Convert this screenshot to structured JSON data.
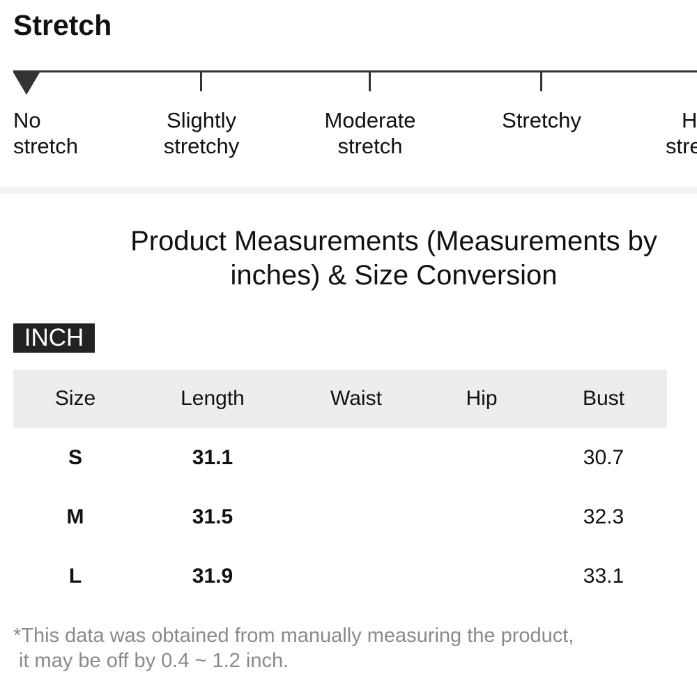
{
  "stretch": {
    "title": "Stretch",
    "selected_index": 0,
    "levels": [
      {
        "line1": "No",
        "line2": "stretch"
      },
      {
        "line1": "Slightly",
        "line2": "stretchy"
      },
      {
        "line1": "Moderate",
        "line2": "stretch"
      },
      {
        "line1": "Stretchy",
        "line2": ""
      },
      {
        "line1": "H",
        "line2": "stre"
      }
    ]
  },
  "measurements": {
    "title_line1": "Product Measurements (Measurements by",
    "title_line2": "inches) & Size Conversion",
    "unit": "INCH",
    "headers": {
      "size": "Size",
      "length": "Length",
      "waist": "Waist",
      "hip": "Hip",
      "bust": "Bust"
    },
    "rows": [
      {
        "size": "S",
        "length": "31.1",
        "waist": "",
        "hip": "",
        "bust": "30.7"
      },
      {
        "size": "M",
        "length": "31.5",
        "waist": "",
        "hip": "",
        "bust": "32.3"
      },
      {
        "size": "L",
        "length": "31.9",
        "waist": "",
        "hip": "",
        "bust": "33.1"
      }
    ],
    "footnote_line1": "*This data was obtained from manually measuring the product,",
    "footnote_line2": "it may be off by 0.4 ~ 1.2 inch."
  },
  "colors": {
    "text": "#111111",
    "scale": "#333333",
    "badge_bg": "#222222",
    "header_bg": "#ededed",
    "footnote": "#8a8a8a"
  }
}
